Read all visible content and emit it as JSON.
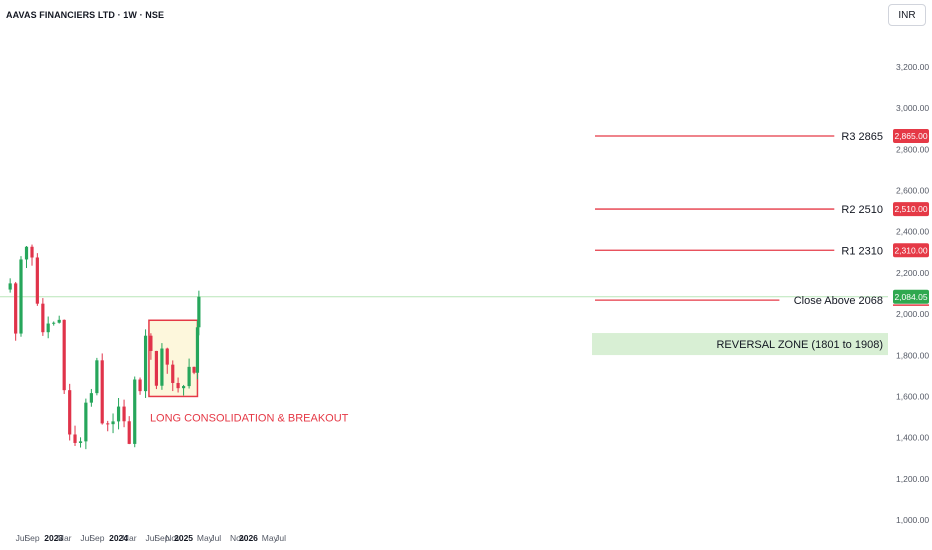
{
  "header": {
    "title": "AAVAS FINANCIERS LTD · 1W · NSE",
    "currency": "INR"
  },
  "colors": {
    "up": "#26a65b",
    "down": "#e0334a",
    "resistance_line": "#e53946",
    "price_line": "#b9e5b8",
    "zone_fill": "#d8efd4",
    "box_fill": "#fdf7dc",
    "box_border": "#e53946",
    "last_price_badge": "#2fa84f",
    "axis_text": "#555a66"
  },
  "chart_data": {
    "type": "candlestick",
    "timeframe": "1W",
    "ylim": [
      1000,
      3300
    ],
    "y_ticks": [
      "1,000.00",
      "1,200.00",
      "1,400.00",
      "1,600.00",
      "1,800.00",
      "2,000.00",
      "2,200.00",
      "2,400.00",
      "2,600.00",
      "2,800.00",
      "3,000.00",
      "3,200.00"
    ],
    "x_ticks": [
      "Jul",
      "Sep",
      "2023",
      "Mar",
      "Jul",
      "Sep",
      "2024",
      "Mar",
      "Jul",
      "Sep",
      "Nov",
      "2025",
      "May",
      "Jul",
      "Nov",
      "2026",
      "May",
      "Jul"
    ],
    "bold_x_ticks": [
      "2023",
      "2024",
      "2025",
      "2026"
    ],
    "x_tick_dates": [
      "2022-07",
      "2022-09",
      "2023-01",
      "2023-03",
      "2023-07",
      "2023-09",
      "2024-01",
      "2024-03",
      "2024-07",
      "2024-09",
      "2024-11",
      "2025-01",
      "2025-05",
      "2025-07",
      "2025-11",
      "2026-01",
      "2026-05",
      "2026-07"
    ],
    "candles_anchor_close": [
      [
        "2022-05",
        2150
      ],
      [
        "2022-06",
        1900
      ],
      [
        "2022-07",
        2300
      ],
      [
        "2022-08",
        2350
      ],
      [
        "2022-09",
        2280
      ],
      [
        "2022-10",
        2050
      ],
      [
        "2022-11",
        1950
      ],
      [
        "2022-12",
        1920
      ],
      [
        "2023-01",
        1950
      ],
      [
        "2023-02",
        1980
      ],
      [
        "2023-03",
        1650
      ],
      [
        "2023-04",
        1390
      ],
      [
        "2023-05",
        1360
      ],
      [
        "2023-06",
        1420
      ],
      [
        "2023-07",
        1570
      ],
      [
        "2023-08",
        1640
      ],
      [
        "2023-09",
        1760
      ],
      [
        "2023-10",
        1500
      ],
      [
        "2023-11",
        1460
      ],
      [
        "2023-12",
        1480
      ],
      [
        "2024-01",
        1580
      ],
      [
        "2024-02",
        1520
      ],
      [
        "2024-03",
        1330
      ],
      [
        "2024-04",
        1640
      ],
      [
        "2024-05",
        1660
      ],
      [
        "2024-06",
        1900
      ],
      [
        "2024-07",
        1780
      ],
      [
        "2024-08",
        1680
      ],
      [
        "2024-09",
        1840
      ],
      [
        "2024-10",
        1750
      ],
      [
        "2024-11",
        1650
      ],
      [
        "2024-12",
        1660
      ],
      [
        "2025-01",
        1680
      ],
      [
        "2025-02",
        1700
      ],
      [
        "2025-03",
        1720
      ],
      [
        "2025-03-20",
        1960
      ],
      [
        "2025-03-28",
        2084
      ]
    ],
    "horizontal_lines": [
      {
        "label": "R3 2865",
        "value": 2865,
        "badge": "2,865.00"
      },
      {
        "label": "R2 2510",
        "value": 2510,
        "badge": "2,510.00"
      },
      {
        "label": "R1 2310",
        "value": 2310,
        "badge": "2,310.00"
      },
      {
        "label": "Close Above 2068",
        "value": 2068,
        "badge": "2,084.05"
      }
    ],
    "last_price": 2084.05,
    "zones": [
      {
        "label": "REVERSAL ZONE (1801 to 1908)",
        "low": 1801,
        "high": 1908
      }
    ],
    "annotations": [
      {
        "label": "LONG CONSOLIDATION & BREAKOUT",
        "x_start": "2024-06-20",
        "x_end": "2025-03-20",
        "low": 1600,
        "high": 1970
      }
    ]
  }
}
